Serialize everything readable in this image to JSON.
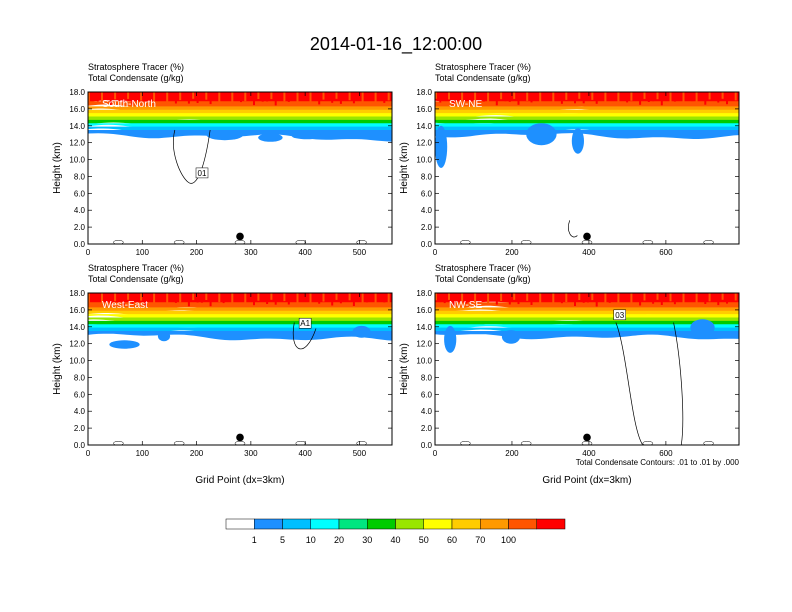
{
  "title": "2014-01-16_12:00:00",
  "chart_data": {
    "type": "heatmap",
    "subtitle_lines": [
      "Stratosphere Tracer   (%)",
      "Total Condensate   (g/kg)"
    ],
    "ylabel": "Height (km)",
    "xlabel": "Grid Point (dx=3km)",
    "ylim": [
      0,
      18
    ],
    "yticks": [
      "0.0",
      "2.0",
      "4.0",
      "6.0",
      "8.0",
      "10.0",
      "12.0",
      "14.0",
      "16.0",
      "18.0"
    ],
    "contour_note": "Total Condensate Contours: .01 to .01 by .000",
    "colorbar": {
      "labels": [
        "1",
        "5",
        "10",
        "20",
        "30",
        "40",
        "50",
        "60",
        "70",
        "100"
      ],
      "colors": [
        "#ffffff",
        "#1e90ff",
        "#00bfff",
        "#00ffff",
        "#00e680",
        "#00cc00",
        "#99e600",
        "#ffff00",
        "#ffcc00",
        "#ff9900",
        "#ff5500",
        "#ff0000"
      ]
    },
    "panels": [
      {
        "name": "South-North",
        "xlim": [
          0,
          560
        ],
        "xticks": [
          "0",
          "100",
          "200",
          "300",
          "400",
          "500"
        ],
        "xtick_values": [
          0,
          100,
          200,
          300,
          400,
          500
        ],
        "marker_x": 280,
        "contour_label": "01",
        "contour_label_x": 210,
        "contour_label_y": 8.3,
        "show_xlabel": false,
        "show_note": false
      },
      {
        "name": "SW-NE",
        "xlim": [
          0,
          790
        ],
        "xticks": [
          "0",
          "200",
          "400",
          "600"
        ],
        "xtick_values": [
          0,
          200,
          400,
          600
        ],
        "marker_x": 395,
        "contour_label": "",
        "show_xlabel": false,
        "show_note": false
      },
      {
        "name": "West-East",
        "xlim": [
          0,
          560
        ],
        "xticks": [
          "0",
          "100",
          "200",
          "300",
          "400",
          "500"
        ],
        "xtick_values": [
          0,
          100,
          200,
          300,
          400,
          500
        ],
        "marker_x": 280,
        "contour_label": "A1",
        "contour_label_x": 400,
        "contour_label_y": 14.3,
        "show_xlabel": true,
        "show_note": false
      },
      {
        "name": "NW-SE",
        "xlim": [
          0,
          790
        ],
        "xticks": [
          "0",
          "200",
          "400",
          "600"
        ],
        "xtick_values": [
          0,
          200,
          400,
          600
        ],
        "marker_x": 395,
        "contour_label": "03",
        "contour_label_x": 480,
        "contour_label_y": 15.3,
        "show_xlabel": true,
        "show_note": true
      }
    ]
  }
}
